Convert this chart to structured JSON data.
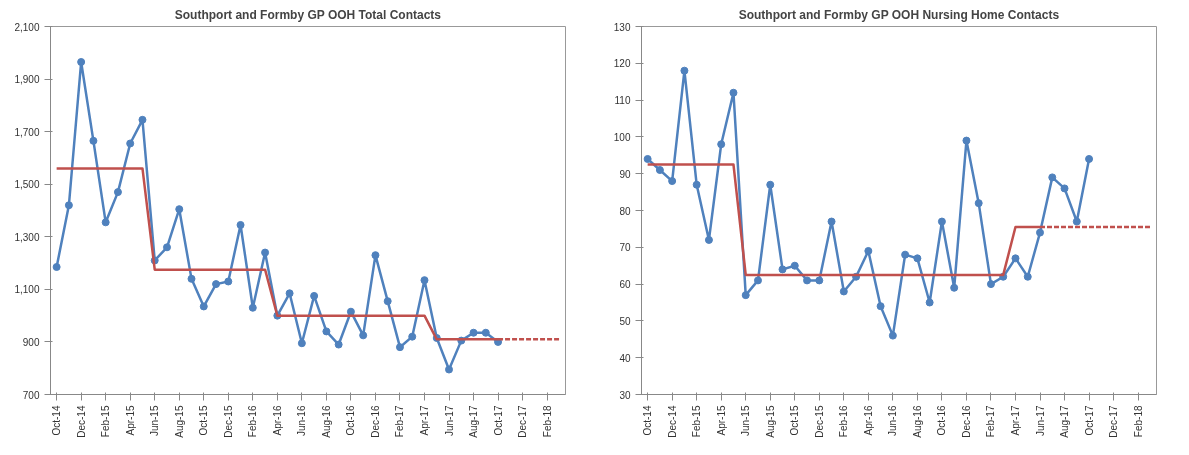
{
  "chart_data": [
    {
      "type": "line",
      "title": "Southport and Formby GP OOH Total Contacts",
      "categories": [
        "Oct-14",
        null,
        "Dec-14",
        null,
        "Feb-15",
        null,
        "Apr-15",
        null,
        "Jun-15",
        null,
        "Aug-15",
        null,
        "Oct-15",
        null,
        "Dec-15",
        null,
        "Feb-16",
        null,
        "Apr-16",
        null,
        "Jun-16",
        null,
        "Aug-16",
        null,
        "Oct-16",
        null,
        "Dec-16",
        null,
        "Feb-17",
        null,
        "Apr-17",
        null,
        "Jun-17",
        null,
        "Aug-17",
        null,
        "Oct-17",
        null,
        "Dec-17",
        null,
        "Feb-18",
        null
      ],
      "ylim": [
        700,
        2100
      ],
      "yticks": [
        700,
        900,
        {
          "value": 1100,
          "label": "1,100"
        },
        {
          "value": 1300,
          "label": "1,300"
        },
        {
          "value": 1500,
          "label": "1,500"
        },
        {
          "value": 1700,
          "label": "1,700"
        },
        {
          "value": 1900,
          "label": "1,900"
        },
        {
          "value": 2100,
          "label": "2,100"
        }
      ],
      "grid": false,
      "series": [
        {
          "color": "#4f81bd",
          "marker": "circle",
          "line_style": "solid",
          "values": [
            1185,
            1420,
            1965,
            1665,
            1355,
            1470,
            1655,
            1745,
            1210,
            1260,
            1405,
            1140,
            1035,
            1120,
            1130,
            1345,
            1030,
            1240,
            1000,
            1085,
            895,
            1075,
            940,
            890,
            1015,
            925,
            1230,
            1055,
            880,
            920,
            1135,
            915,
            795,
            905,
            935,
            935,
            900,
            null,
            null,
            null,
            null,
            null
          ]
        },
        {
          "color": "#c0504d",
          "marker": "none",
          "line_style": "solid",
          "values": [
            1560,
            1560,
            1560,
            1560,
            1560,
            1560,
            1560,
            1560,
            1175,
            1175,
            1175,
            1175,
            1175,
            1175,
            1175,
            1175,
            1175,
            1175,
            1000,
            1000,
            1000,
            1000,
            1000,
            1000,
            1000,
            1000,
            1000,
            1000,
            1000,
            1000,
            1000,
            910,
            910,
            910,
            910,
            910,
            910,
            null,
            null,
            null,
            null,
            null
          ]
        },
        {
          "color": "#c0504d",
          "marker": "none",
          "line_style": "dashed",
          "values": [
            null,
            null,
            null,
            null,
            null,
            null,
            null,
            null,
            null,
            null,
            null,
            null,
            null,
            null,
            null,
            null,
            null,
            null,
            null,
            null,
            null,
            null,
            null,
            null,
            null,
            null,
            null,
            null,
            null,
            null,
            null,
            null,
            null,
            null,
            null,
            null,
            910,
            910,
            910,
            910,
            910,
            910
          ]
        }
      ]
    },
    {
      "type": "line",
      "title": "Southport and Formby GP OOH Nursing Home Contacts",
      "categories": [
        "Oct-14",
        null,
        "Dec-14",
        null,
        "Feb-15",
        null,
        "Apr-15",
        null,
        "Jun-15",
        null,
        "Aug-15",
        null,
        "Oct-15",
        null,
        "Dec-15",
        null,
        "Feb-16",
        null,
        "Apr-16",
        null,
        "Jun-16",
        null,
        "Aug-16",
        null,
        "Oct-16",
        null,
        "Dec-16",
        null,
        "Feb-17",
        null,
        "Apr-17",
        null,
        "Jun-17",
        null,
        "Aug-17",
        null,
        "Oct-17",
        null,
        "Dec-17",
        null,
        "Feb-18",
        null
      ],
      "ylim": [
        30,
        130
      ],
      "yticks": [
        30,
        40,
        50,
        60,
        70,
        80,
        90,
        100,
        110,
        120,
        130
      ],
      "grid": false,
      "series": [
        {
          "color": "#4f81bd",
          "marker": "circle",
          "line_style": "solid",
          "values": [
            94,
            91,
            88,
            118,
            87,
            72,
            98,
            112,
            57,
            61,
            87,
            64,
            65,
            61,
            61,
            77,
            58,
            62,
            69,
            54,
            46,
            68,
            67,
            55,
            77,
            59,
            99,
            82,
            60,
            62,
            67,
            62,
            74,
            89,
            86,
            77,
            94,
            null,
            null,
            null,
            null,
            null
          ]
        },
        {
          "color": "#c0504d",
          "marker": "none",
          "line_style": "solid",
          "values": [
            92.5,
            92.5,
            92.5,
            92.5,
            92.5,
            92.5,
            92.5,
            92.5,
            62.5,
            62.5,
            62.5,
            62.5,
            62.5,
            62.5,
            62.5,
            62.5,
            62.5,
            62.5,
            62.5,
            62.5,
            62.5,
            62.5,
            62.5,
            62.5,
            62.5,
            62.5,
            62.5,
            62.5,
            62.5,
            62.5,
            75.5,
            75.5,
            75.5,
            null,
            null,
            null,
            null,
            null,
            null,
            null,
            null,
            null
          ]
        },
        {
          "color": "#c0504d",
          "marker": "none",
          "line_style": "dashed",
          "values": [
            null,
            null,
            null,
            null,
            null,
            null,
            null,
            null,
            null,
            null,
            null,
            null,
            null,
            null,
            null,
            null,
            null,
            null,
            null,
            null,
            null,
            null,
            null,
            null,
            null,
            null,
            null,
            null,
            null,
            null,
            null,
            null,
            75.5,
            75.5,
            75.5,
            75.5,
            75.5,
            75.5,
            75.5,
            75.5,
            75.5,
            75.5
          ]
        }
      ]
    }
  ]
}
